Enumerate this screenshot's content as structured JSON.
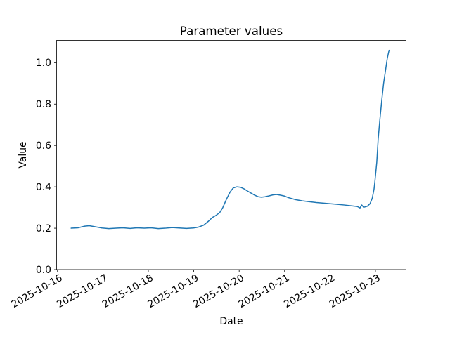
{
  "figure": {
    "background": "#ffffff"
  },
  "chart_data": {
    "type": "line",
    "title": "Parameter values",
    "xlabel": "Date",
    "ylabel": "Value",
    "grid": false,
    "legend": "none",
    "line_color": "#1f77b4",
    "axis_color": "#000000",
    "x_unit": "days since 2025-10-16 00:00",
    "xlim": [
      -0.02,
      7.674
    ],
    "ylim": [
      0.0,
      1.108
    ],
    "x_ticks": [
      {
        "pos": 0,
        "label": "2025-10-16"
      },
      {
        "pos": 1,
        "label": "2025-10-17"
      },
      {
        "pos": 2,
        "label": "2025-10-18"
      },
      {
        "pos": 3,
        "label": "2025-10-19"
      },
      {
        "pos": 4,
        "label": "2025-10-20"
      },
      {
        "pos": 5,
        "label": "2025-10-21"
      },
      {
        "pos": 6,
        "label": "2025-10-22"
      },
      {
        "pos": 7,
        "label": "2025-10-23"
      }
    ],
    "y_ticks": [
      0.0,
      0.2,
      0.4,
      0.6,
      0.8,
      1.0
    ],
    "series": [
      {
        "color": "#1f77b4",
        "points": [
          [
            0.3,
            0.2
          ],
          [
            0.45,
            0.202
          ],
          [
            0.6,
            0.21
          ],
          [
            0.7,
            0.212
          ],
          [
            0.83,
            0.207
          ],
          [
            0.98,
            0.201
          ],
          [
            1.13,
            0.198
          ],
          [
            1.29,
            0.2
          ],
          [
            1.44,
            0.202
          ],
          [
            1.6,
            0.199
          ],
          [
            1.75,
            0.202
          ],
          [
            1.91,
            0.2
          ],
          [
            2.06,
            0.202
          ],
          [
            2.22,
            0.198
          ],
          [
            2.37,
            0.2
          ],
          [
            2.53,
            0.203
          ],
          [
            2.68,
            0.201
          ],
          [
            2.84,
            0.199
          ],
          [
            2.99,
            0.201
          ],
          [
            3.1,
            0.205
          ],
          [
            3.22,
            0.215
          ],
          [
            3.33,
            0.235
          ],
          [
            3.41,
            0.252
          ],
          [
            3.49,
            0.262
          ],
          [
            3.57,
            0.275
          ],
          [
            3.64,
            0.3
          ],
          [
            3.72,
            0.34
          ],
          [
            3.8,
            0.375
          ],
          [
            3.87,
            0.395
          ],
          [
            3.95,
            0.4
          ],
          [
            4.03,
            0.398
          ],
          [
            4.11,
            0.39
          ],
          [
            4.18,
            0.38
          ],
          [
            4.26,
            0.37
          ],
          [
            4.34,
            0.36
          ],
          [
            4.42,
            0.352
          ],
          [
            4.49,
            0.35
          ],
          [
            4.57,
            0.352
          ],
          [
            4.65,
            0.356
          ],
          [
            4.74,
            0.361
          ],
          [
            4.82,
            0.363
          ],
          [
            4.9,
            0.36
          ],
          [
            4.99,
            0.356
          ],
          [
            5.08,
            0.348
          ],
          [
            5.24,
            0.338
          ],
          [
            5.39,
            0.332
          ],
          [
            5.55,
            0.328
          ],
          [
            5.7,
            0.324
          ],
          [
            5.86,
            0.321
          ],
          [
            6.01,
            0.318
          ],
          [
            6.17,
            0.315
          ],
          [
            6.32,
            0.312
          ],
          [
            6.48,
            0.308
          ],
          [
            6.6,
            0.305
          ],
          [
            6.66,
            0.298
          ],
          [
            6.7,
            0.312
          ],
          [
            6.74,
            0.301
          ],
          [
            6.82,
            0.306
          ],
          [
            6.88,
            0.318
          ],
          [
            6.93,
            0.345
          ],
          [
            6.97,
            0.39
          ],
          [
            6.99,
            0.43
          ],
          [
            7.03,
            0.52
          ],
          [
            7.06,
            0.63
          ],
          [
            7.1,
            0.73
          ],
          [
            7.14,
            0.82
          ],
          [
            7.18,
            0.9
          ],
          [
            7.22,
            0.96
          ],
          [
            7.26,
            1.02
          ],
          [
            7.3,
            1.06
          ]
        ]
      }
    ]
  }
}
